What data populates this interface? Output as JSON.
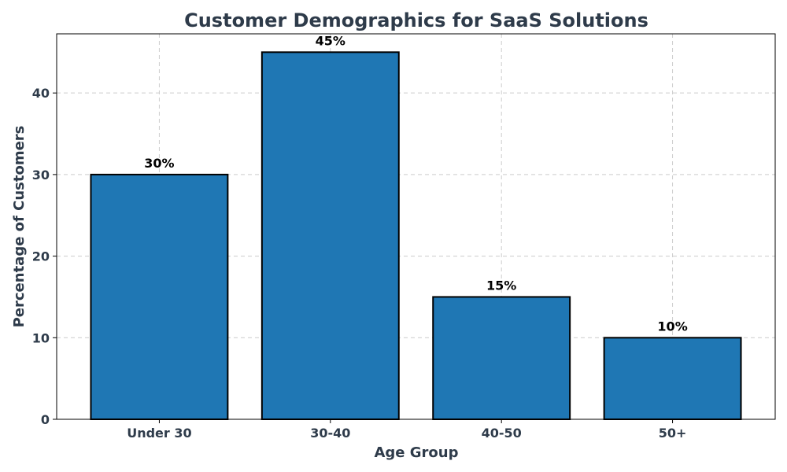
{
  "chart_data": {
    "type": "bar",
    "title": "Customer Demographics for SaaS Solutions",
    "xlabel": "Age Group",
    "ylabel": "Percentage of Customers",
    "categories": [
      "Under 30",
      "30-40",
      "40-50",
      "50+"
    ],
    "values": [
      30,
      45,
      15,
      10
    ],
    "value_labels": [
      "30%",
      "45%",
      "15%",
      "10%"
    ],
    "ylim": [
      0,
      47.25
    ],
    "yticks": [
      0,
      10,
      20,
      30,
      40
    ],
    "grid": true,
    "bar_color": "#1f77b4",
    "bar_edge_color": "#000000",
    "text_color": "#2e3b4a"
  }
}
